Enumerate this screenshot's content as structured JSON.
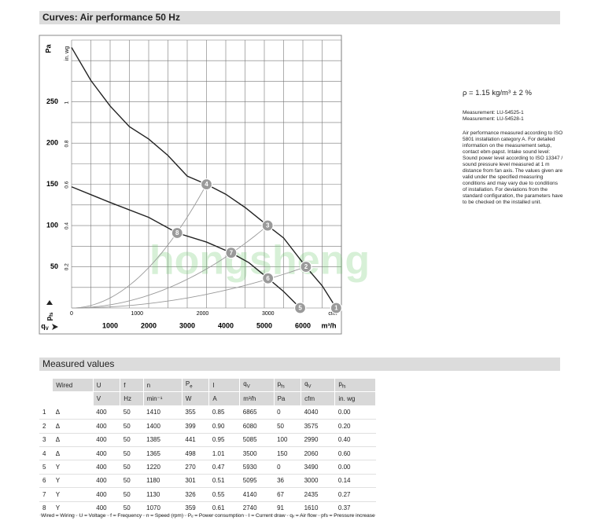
{
  "header": {
    "title": "Curves: Air performance 50 Hz"
  },
  "chart_data": {
    "type": "line",
    "ylabel": "Pa",
    "y2label": "in. wg",
    "xlabel": "m³/h",
    "x2label": "cfm",
    "ysymbol": {
      "text": "p",
      "sub": "fs"
    },
    "xsymbol": {
      "text": "q",
      "sub": "V"
    },
    "watermark": "hongsheng",
    "xlim": [
      0,
      7000
    ],
    "ylim": [
      0,
      325
    ],
    "xticks": [
      1000,
      2000,
      3000,
      4000,
      5000,
      6000
    ],
    "yticks": [
      50,
      100,
      150,
      200,
      250
    ],
    "x2lim": [
      0,
      4120
    ],
    "x2ticks": [
      0,
      1000,
      2000,
      3000
    ],
    "y2lim": [
      0,
      1.305
    ],
    "y2ticks": [
      0.2,
      0.4,
      0.6,
      0.8,
      1
    ],
    "xgrid": [
      0,
      500,
      1000,
      1500,
      2000,
      2500,
      3000,
      3500,
      4000,
      4500,
      5000,
      5500,
      6000,
      6500,
      7000
    ],
    "ygrid": [
      0,
      25,
      50,
      75,
      100,
      125,
      150,
      175,
      200,
      225,
      250,
      275,
      300,
      325
    ],
    "series": [
      {
        "color": "#222222",
        "x": [
          0,
          500,
          1000,
          1500,
          2000,
          2500,
          3000,
          3500,
          4000,
          4500,
          5085,
          5500,
          6080,
          6500,
          6865
        ],
        "values": [
          316,
          276,
          245,
          220,
          205,
          185,
          160,
          150,
          138,
          122,
          100,
          85,
          50,
          27,
          0
        ]
      },
      {
        "color": "#222222",
        "x": [
          0,
          1000,
          2000,
          2740,
          3500,
          4140,
          4600,
          5095,
          5500,
          5930
        ],
        "values": [
          147,
          128,
          110,
          91,
          80,
          67,
          55,
          36,
          20,
          0
        ]
      }
    ],
    "points": {
      "color": "#9a9a9a",
      "labels": [
        "1",
        "2",
        "3",
        "4",
        "5",
        "6",
        "7",
        "8"
      ],
      "x": [
        6865,
        6080,
        5085,
        3500,
        5930,
        5095,
        4140,
        2740
      ],
      "values": [
        0,
        50,
        100,
        150,
        0,
        36,
        67,
        91
      ]
    }
  },
  "notes": {
    "density": "ρ = 1.15 kg/m³ ± 2 %",
    "measurements": [
      "Measurement: LU-54525-1",
      "Measurement: LU-54528-1"
    ],
    "text": "Air performance measured according to ISO 5801 installation category A. For detailed information on the measurement setup, contact ebm-papst. Intake sound level: Sound power level according to ISO 13347 / sound pressure level measured at 1 m distance from fan axis. The values given are valid under the specified measuring conditions and may vary due to conditions of installation. For deviations from the standard configuration, the parameters have to be checked on the installed unit."
  },
  "table": {
    "title": "Measured values",
    "header": [
      null,
      "Wired",
      "U",
      "f",
      "n",
      {
        "text": "P",
        "sub": "e"
      },
      "I",
      {
        "text": "q",
        "sub": "V"
      },
      {
        "text": "p",
        "sub": "fs"
      },
      {
        "text": "q",
        "sub": "V"
      },
      {
        "text": "p",
        "sub": "fs"
      }
    ],
    "units": [
      null,
      null,
      "V",
      "Hz",
      "min⁻¹",
      "W",
      "A",
      "m³/h",
      "Pa",
      "cfm",
      "in. wg"
    ],
    "rows": [
      [
        "1",
        "Δ",
        "400",
        "50",
        "1410",
        "355",
        "0.85",
        "6865",
        "0",
        "4040",
        "0.00"
      ],
      [
        "2",
        "Δ",
        "400",
        "50",
        "1400",
        "399",
        "0.90",
        "6080",
        "50",
        "3575",
        "0.20"
      ],
      [
        "3",
        "Δ",
        "400",
        "50",
        "1385",
        "441",
        "0.95",
        "5085",
        "100",
        "2990",
        "0.40"
      ],
      [
        "4",
        "Δ",
        "400",
        "50",
        "1365",
        "498",
        "1.01",
        "3500",
        "150",
        "2060",
        "0.60"
      ],
      [
        "5",
        "Y",
        "400",
        "50",
        "1220",
        "270",
        "0.47",
        "5930",
        "0",
        "3490",
        "0.00"
      ],
      [
        "6",
        "Y",
        "400",
        "50",
        "1180",
        "301",
        "0.51",
        "5095",
        "36",
        "3000",
        "0.14"
      ],
      [
        "7",
        "Y",
        "400",
        "50",
        "1130",
        "326",
        "0.55",
        "4140",
        "67",
        "2435",
        "0.27"
      ],
      [
        "8",
        "Y",
        "400",
        "50",
        "1070",
        "359",
        "0.61",
        "2740",
        "91",
        "1610",
        "0.37"
      ]
    ],
    "footnote": "Wired = Wiring · U = Voltage · f = Frequency · n = Speed (rpm) · Pₑ = Power consumption · I = Current draw · qᵥ = Air flow · pfs = Pressure increase"
  }
}
